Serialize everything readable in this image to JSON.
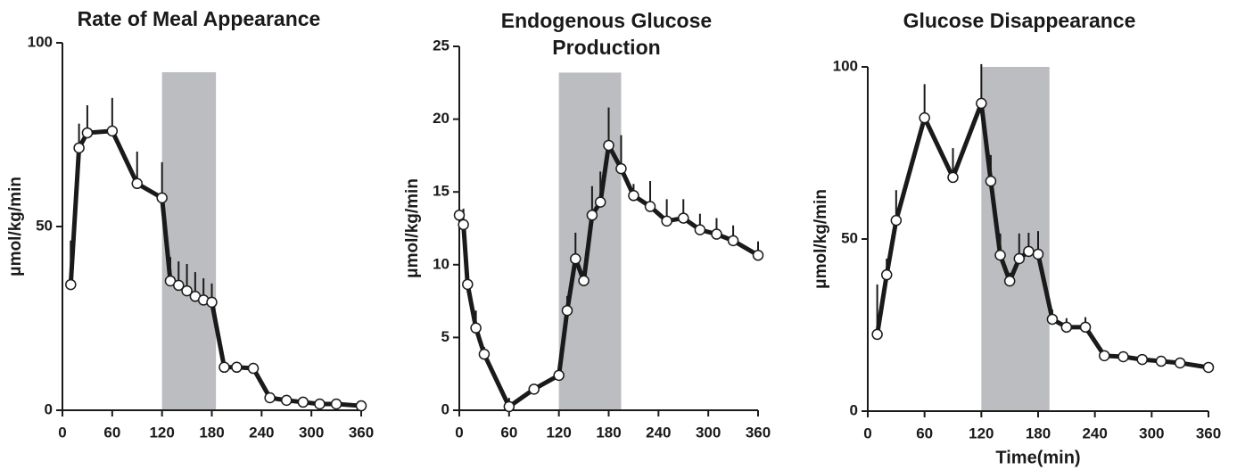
{
  "chart_data": [
    {
      "type": "line",
      "title": "Rate of Meal Appearance",
      "ylabel": "μmol/kg/min",
      "x": [
        10,
        20,
        30,
        60,
        90,
        120,
        130,
        140,
        150,
        160,
        170,
        180,
        195,
        210,
        230,
        250,
        270,
        290,
        310,
        330,
        360
      ],
      "values": [
        34.2,
        71.4,
        75.5,
        76,
        61.7,
        57.8,
        35.2,
        34,
        32.5,
        31,
        30,
        29.4,
        11.7,
        11.7,
        11.4,
        3.4,
        2.7,
        2.2,
        1.7,
        1.7,
        1.2
      ],
      "errors": [
        12,
        6.6,
        7.5,
        9,
        8.7,
        9.7,
        6.5,
        6.5,
        7.3,
        6.6,
        5.9,
        5.1,
        2,
        1.5,
        1.5,
        0.5,
        0.5,
        0.5,
        0.5,
        0.5,
        0.5
      ],
      "color": "#1a1a1a",
      "shade": {
        "x": [
          120,
          185
        ],
        "y": [
          0,
          92
        ],
        "color": "#bcbdc0"
      },
      "xlim": [
        0,
        360
      ],
      "xticks": [
        0,
        60,
        120,
        180,
        240,
        300,
        360
      ],
      "ylim": [
        0,
        100
      ],
      "yticks": [
        0,
        50,
        100
      ]
    },
    {
      "type": "line",
      "title": "Endogenous Glucose Production",
      "ylabel": "μmol/kg/min",
      "x": [
        0,
        5,
        10,
        20,
        30,
        60,
        90,
        120,
        130,
        140,
        150,
        160,
        170,
        180,
        195,
        210,
        230,
        250,
        270,
        290,
        310,
        330,
        360
      ],
      "values": [
        13.4,
        12.75,
        8.65,
        5.65,
        3.85,
        0.25,
        1.45,
        2.4,
        6.85,
        10.4,
        8.9,
        13.4,
        14.3,
        18.2,
        16.6,
        14.75,
        14,
        13,
        13.2,
        12.4,
        12.1,
        11.65,
        10.65
      ],
      "errors": [
        0.4,
        1.1,
        0.3,
        1.2,
        0.5,
        0.6,
        0.3,
        0.2,
        1,
        1.8,
        0.3,
        2,
        2.1,
        2.6,
        2.3,
        0.8,
        1.75,
        1.5,
        1.3,
        1.1,
        1.1,
        1.05,
        0.95
      ],
      "color": "#1a1a1a",
      "shade": {
        "x": [
          120,
          195
        ],
        "y": [
          0,
          23.2
        ],
        "color": "#bcbdc0"
      },
      "xlim": [
        0,
        360
      ],
      "xticks": [
        0,
        60,
        120,
        180,
        240,
        300,
        360
      ],
      "ylim": [
        0,
        25
      ],
      "yticks": [
        0,
        5,
        10,
        15,
        20,
        25
      ]
    },
    {
      "type": "line",
      "title": "Glucose Disappearance",
      "ylabel": "μmol/kg/min",
      "xlabel": "Time(min)",
      "x": [
        10,
        20,
        30,
        60,
        90,
        120,
        130,
        140,
        150,
        160,
        170,
        180,
        195,
        210,
        230,
        250,
        270,
        290,
        310,
        330,
        360
      ],
      "values": [
        22.3,
        39.6,
        55.4,
        85.2,
        67.9,
        89.4,
        66.8,
        45.3,
        37.8,
        44.3,
        46.4,
        45.6,
        26.7,
        24.4,
        24.4,
        16.1,
        15.8,
        15,
        14.5,
        14,
        12.7
      ],
      "errors": [
        14.5,
        4.7,
        8.8,
        9.8,
        8.5,
        11.4,
        7.6,
        6.3,
        2.4,
        7.3,
        5.4,
        6.7,
        2.8,
        2.6,
        2.9,
        0.5,
        0.5,
        0.5,
        0.5,
        0.5,
        0.5
      ],
      "color": "#1a1a1a",
      "shade": {
        "x": [
          120,
          192
        ],
        "y": [
          0,
          100
        ],
        "color": "#bcbdc0"
      },
      "xlim": [
        0,
        360
      ],
      "xticks": [
        0,
        60,
        120,
        180,
        240,
        300,
        360
      ],
      "ylim": [
        0,
        100
      ],
      "yticks": [
        0,
        50,
        100
      ]
    }
  ]
}
